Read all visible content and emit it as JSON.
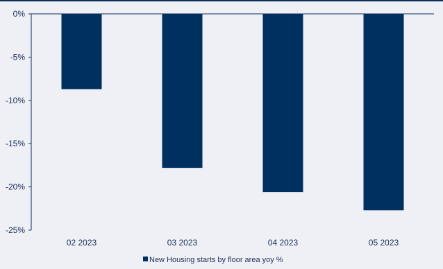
{
  "chart_data": {
    "type": "bar",
    "categories": [
      "02 2023",
      "03 2023",
      "04 2023",
      "05 2023"
    ],
    "series": [
      {
        "name": "New Housing starts by floor area yoy %",
        "values": [
          -8.7,
          -17.8,
          -20.6,
          -22.7
        ],
        "color": "#00305f"
      }
    ],
    "yticks": [
      "0%",
      "-5%",
      "-10%",
      "-15%",
      "-20%",
      "-25%"
    ],
    "ylim": [
      -25,
      0
    ],
    "title": "",
    "xlabel": "",
    "ylabel": "",
    "grid": false,
    "legend_position": "bottom-center"
  },
  "colors": {
    "background": "#eef0f6",
    "axis": "#0d2d5a",
    "tick_text": "#1b2f55",
    "bar": "#00305f"
  }
}
